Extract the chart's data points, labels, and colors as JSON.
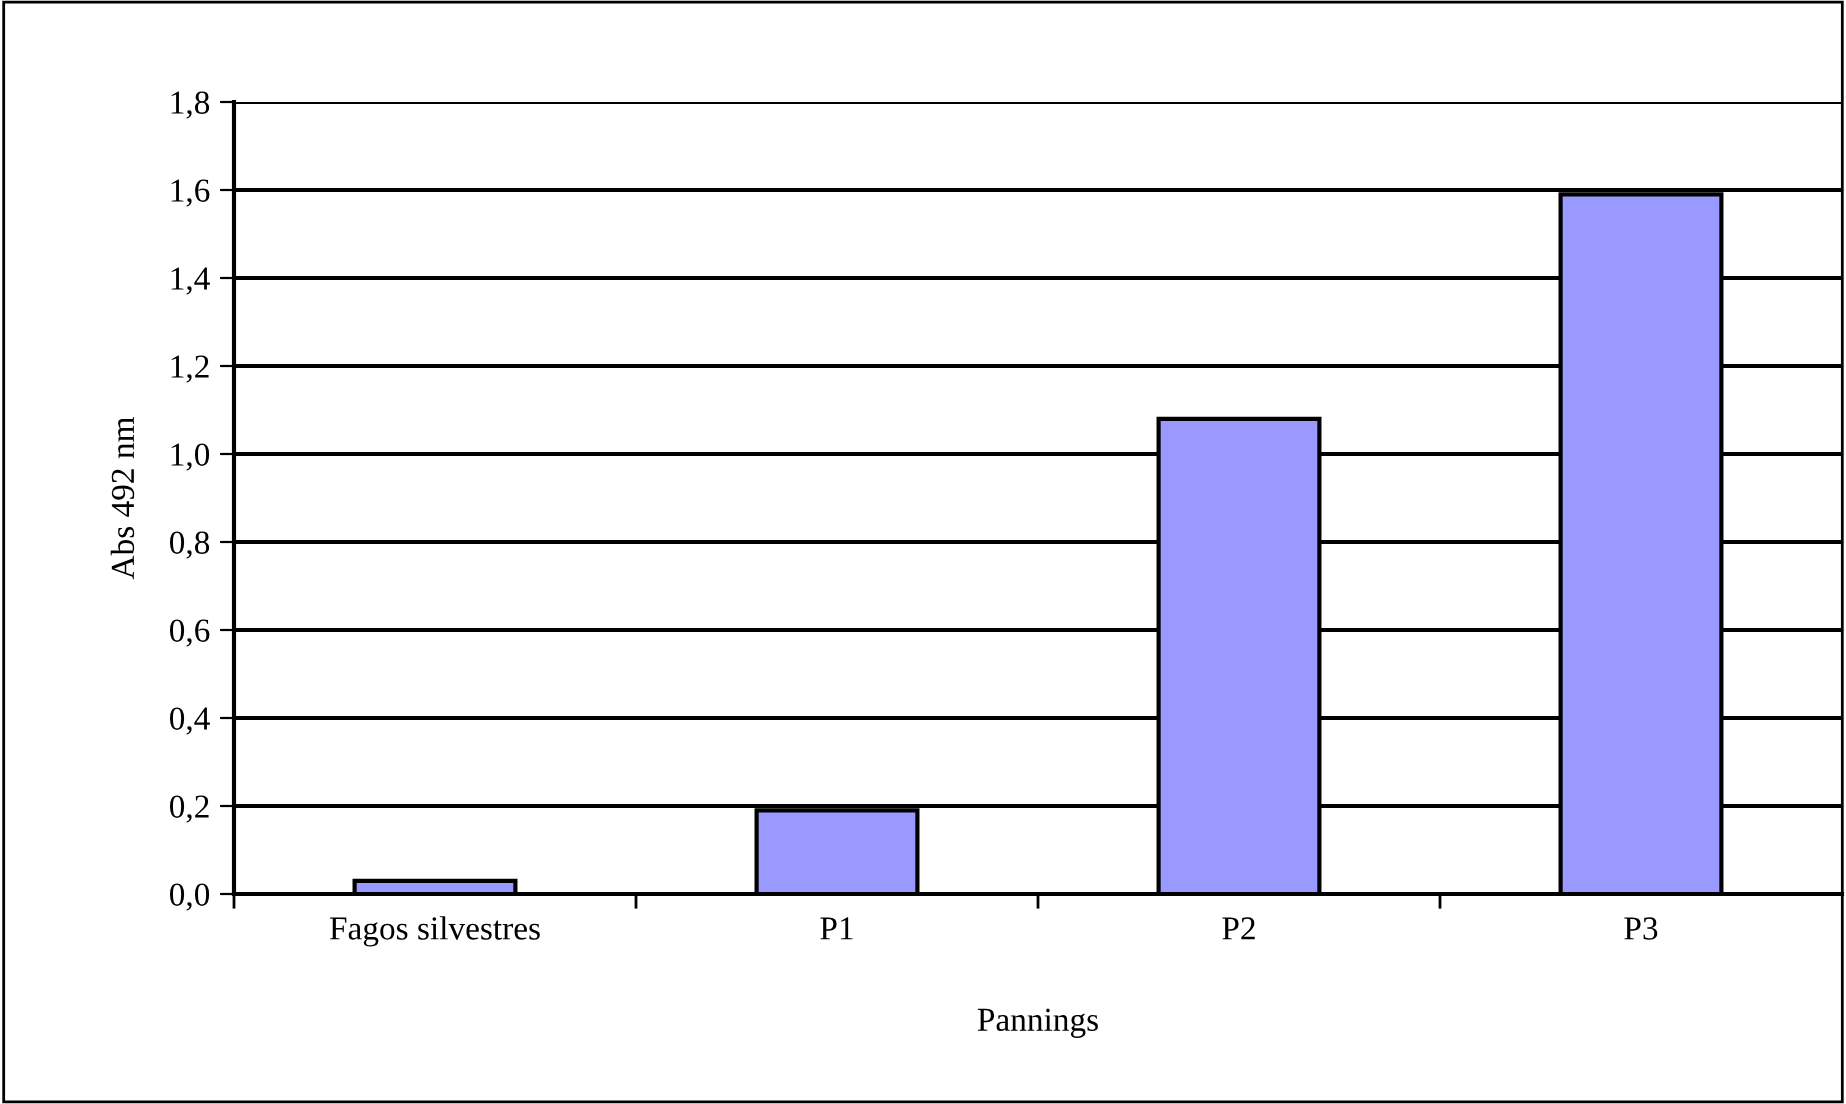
{
  "chart_data": {
    "type": "bar",
    "xlabel": "Pannings",
    "ylabel": "Abs 492 nm",
    "categories": [
      "Fagos silvestres",
      "P1",
      "P2",
      "P3"
    ],
    "values": [
      0.03,
      0.19,
      1.08,
      1.59
    ],
    "color": "#9999ff",
    "ylim": [
      0,
      1.8
    ],
    "yticks": [
      {
        "value": 0,
        "label": "0,0"
      },
      {
        "value": 0.2,
        "label": "0,2"
      },
      {
        "value": 0.4,
        "label": "0,4"
      },
      {
        "value": 0.6,
        "label": "0,6"
      },
      {
        "value": 0.8,
        "label": "0,8"
      },
      {
        "value": 1.0,
        "label": "1,0"
      },
      {
        "value": 1.2,
        "label": "1,2"
      },
      {
        "value": 1.4,
        "label": "1,4"
      },
      {
        "value": 1.6,
        "label": "1,6"
      },
      {
        "value": 1.8,
        "label": "1,8"
      }
    ],
    "grid": "y"
  }
}
